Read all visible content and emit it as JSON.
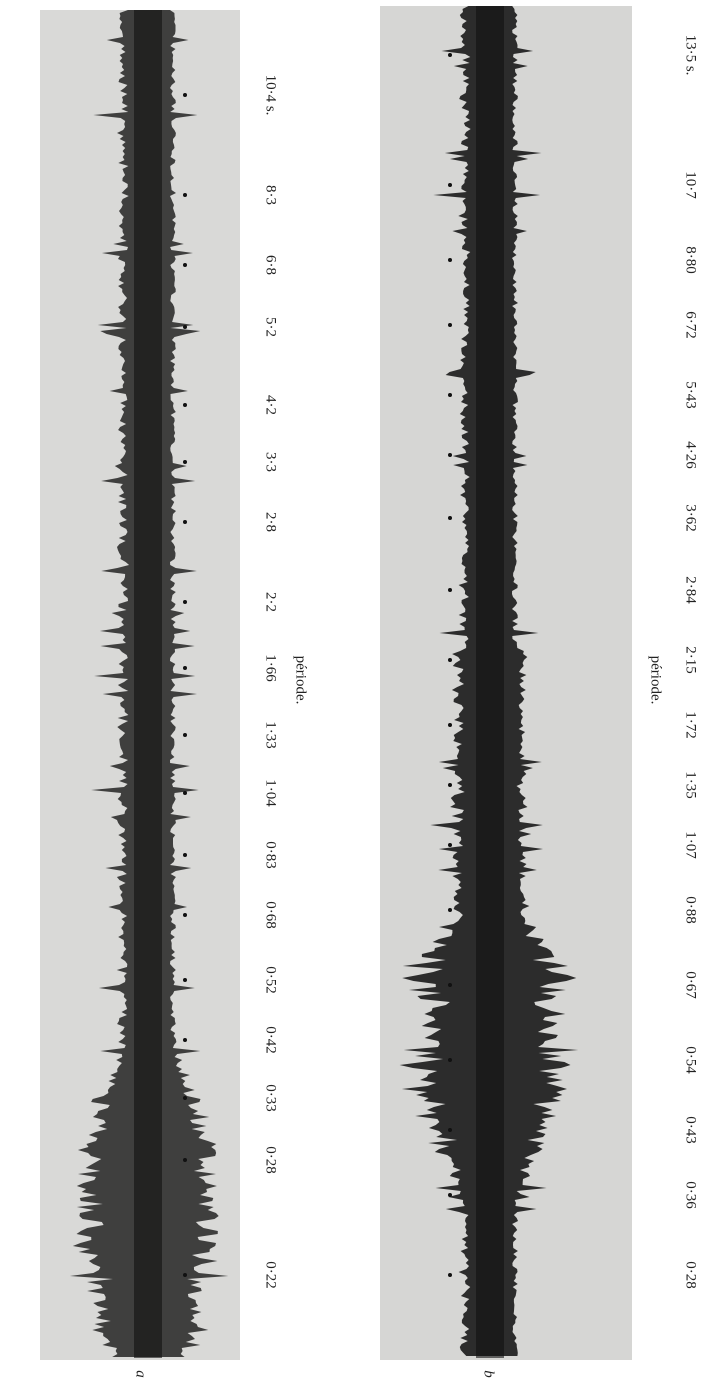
{
  "panels": [
    {
      "label": "a",
      "axis_title": "période.",
      "periods": [
        "0·22",
        "0·28",
        "0·33",
        "0·42",
        "0·52",
        "0·68",
        "0·83",
        "1·04",
        "1·33",
        "1·66",
        "2·2",
        "2·8",
        "3·3",
        "4·2",
        "5·2",
        "6·8",
        "8·3",
        "10·4 s."
      ]
    },
    {
      "label": "b",
      "axis_title": "période.",
      "periods": [
        "0·28",
        "0·36",
        "0·43",
        "0·54",
        "0·67",
        "0·88",
        "1·07",
        "1·35",
        "1·72",
        "2·15",
        "2·84",
        "3·62",
        "4·26",
        "5·43",
        "6·72",
        "8·80",
        "10·7",
        "13·5 s."
      ]
    }
  ]
}
